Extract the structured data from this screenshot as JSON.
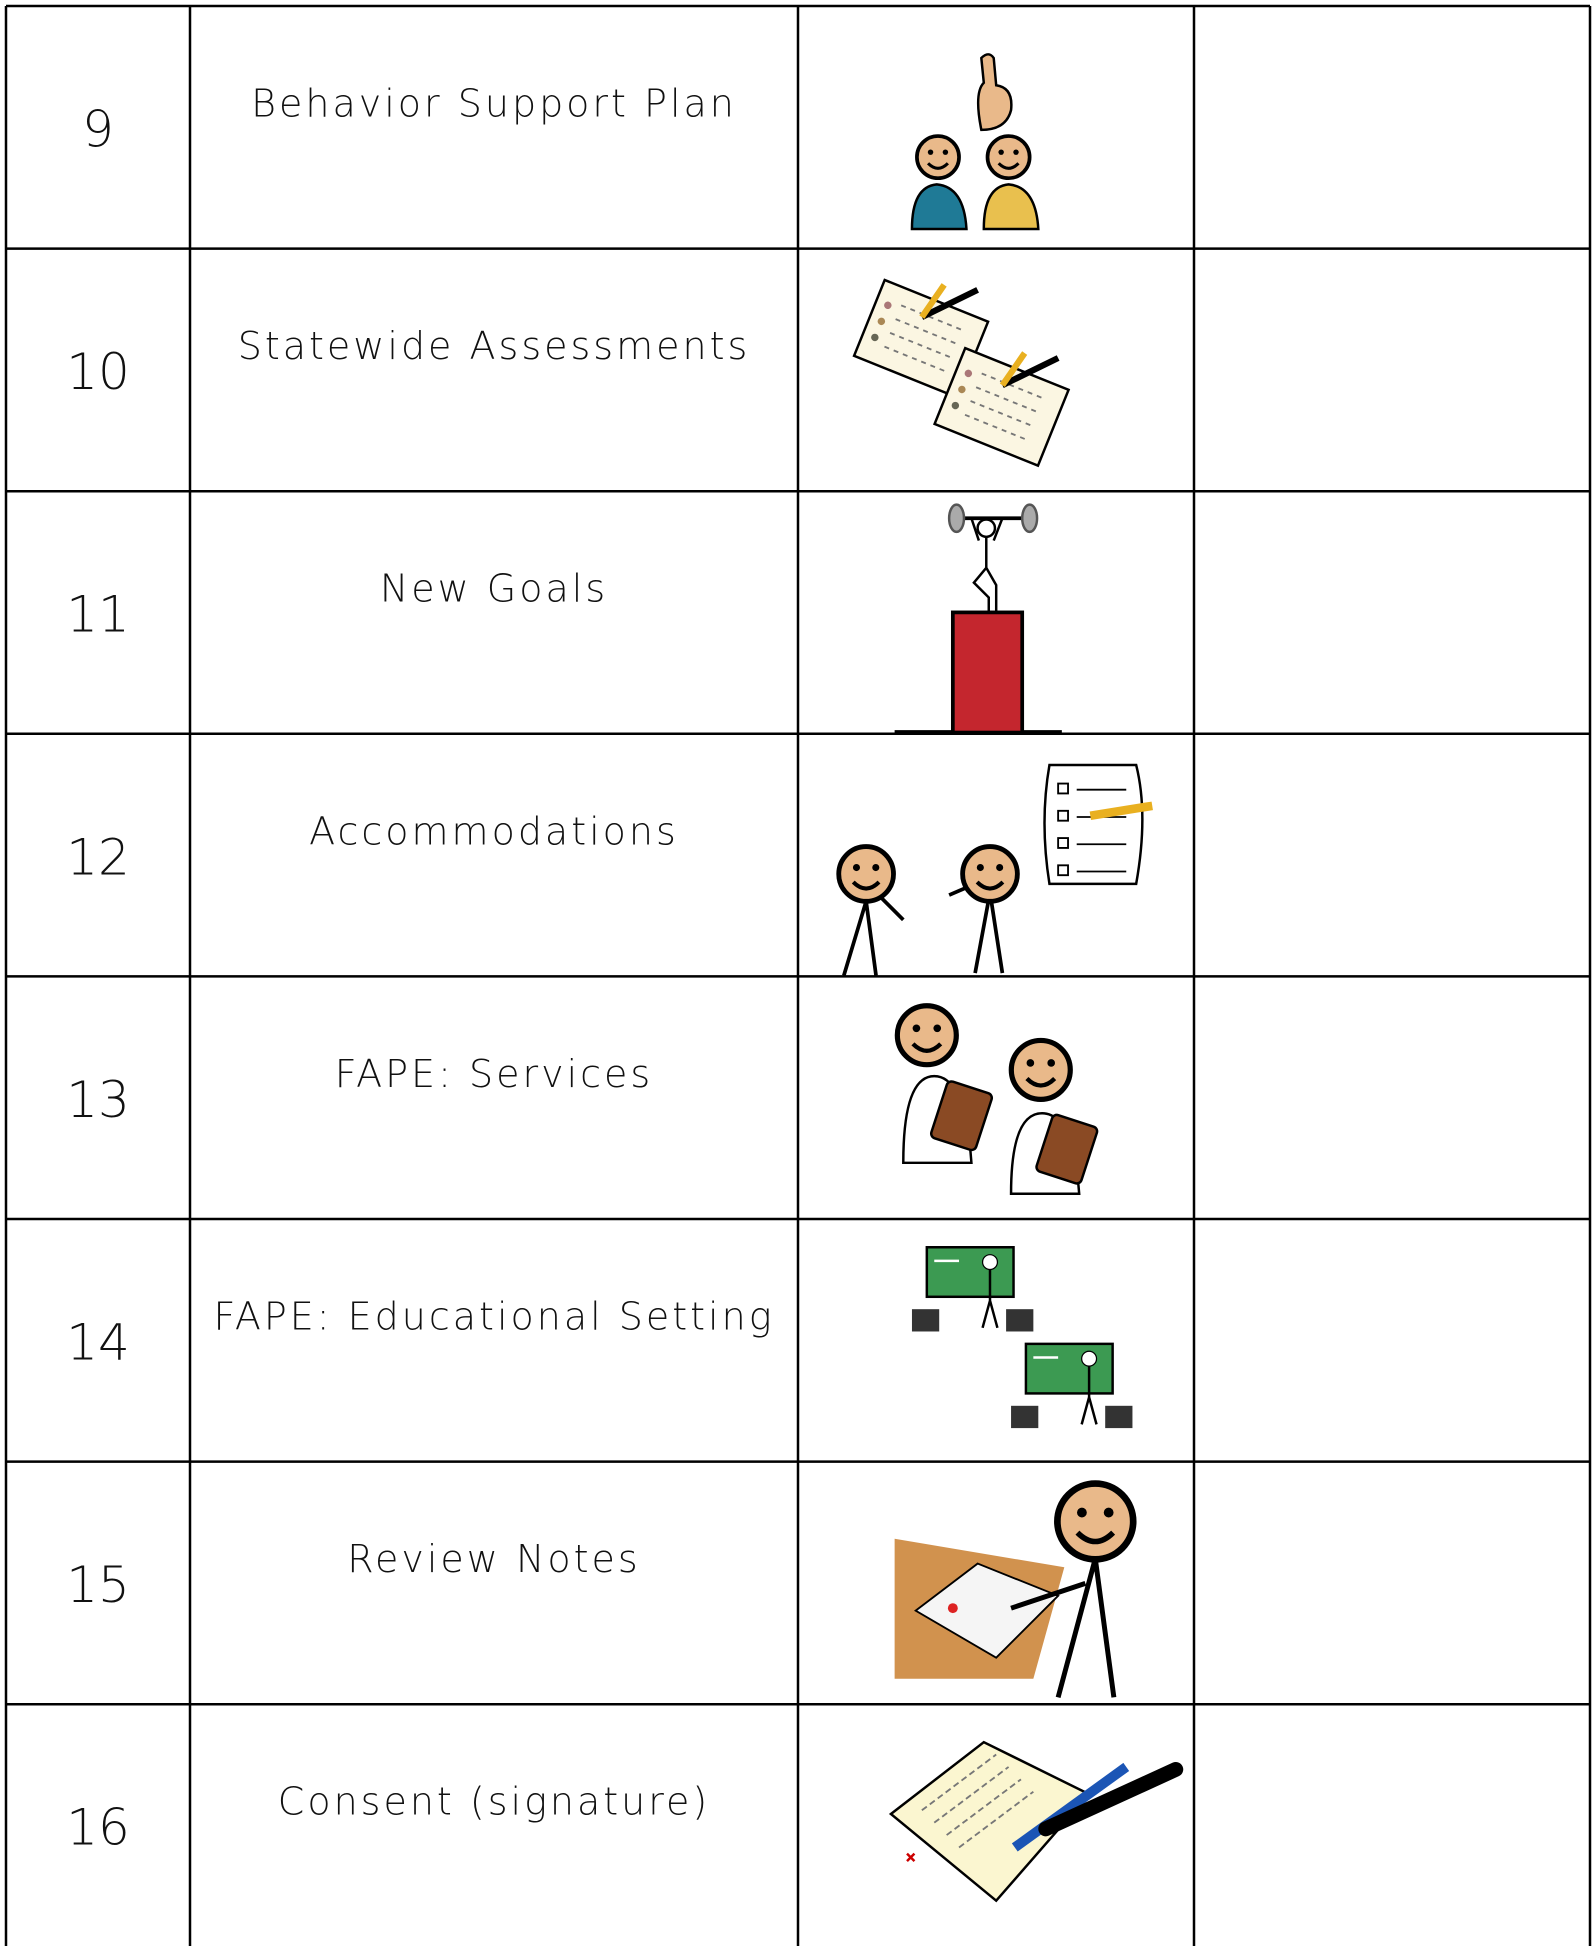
{
  "rows": [
    {
      "number": "9",
      "label": "Behavior Support Plan"
    },
    {
      "number": "10",
      "label": "Statewide Assessments"
    },
    {
      "number": "11",
      "label": "New Goals"
    },
    {
      "number": "12",
      "label": "Accommodations"
    },
    {
      "number": "13",
      "label": "FAPE: Services"
    },
    {
      "number": "14",
      "label": "FAPE: Educational Setting"
    },
    {
      "number": "15",
      "label": "Review Notes"
    },
    {
      "number": "16",
      "label": "Consent (signature)"
    }
  ]
}
